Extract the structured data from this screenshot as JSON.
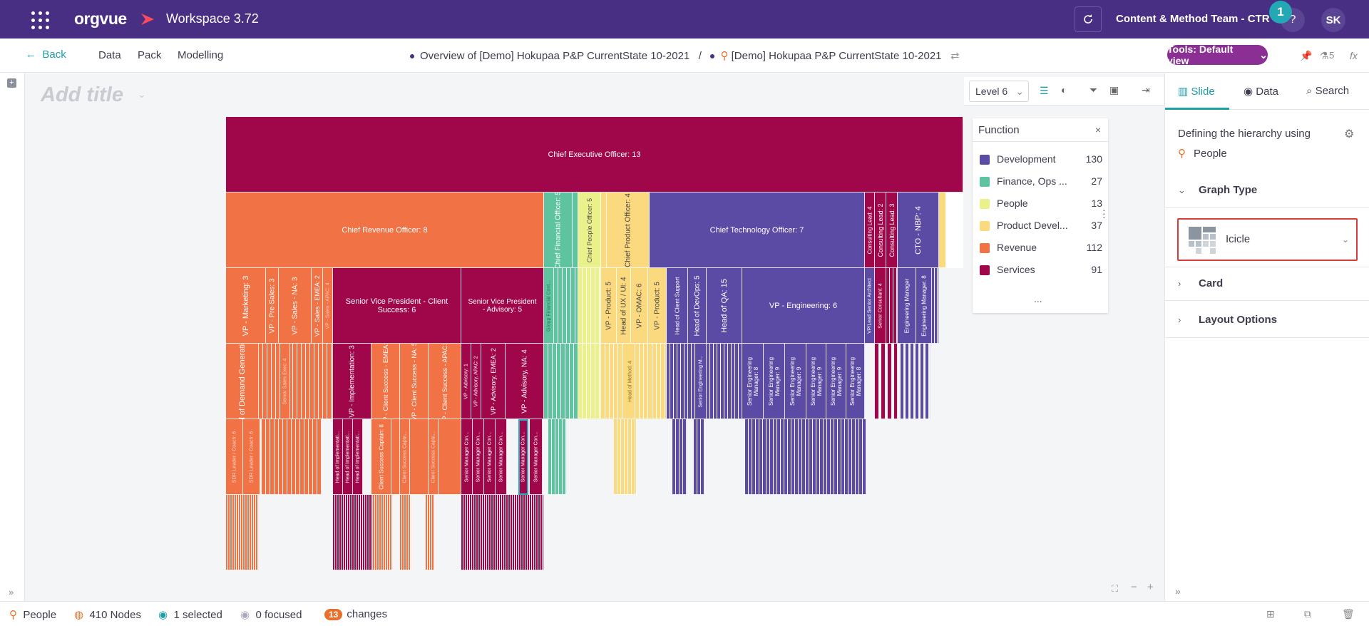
{
  "topbar": {
    "brand": "orgvue",
    "workspace": "Workspace 3.72",
    "team": "Content & Method Team - CTR",
    "help": "?",
    "notif_count": "1",
    "avatar": "SK"
  },
  "nav": {
    "back": "Back",
    "links": [
      "Data",
      "Pack",
      "Modelling"
    ],
    "crumb_left": "Overview of [Demo] Hokupaa P&P CurrentState 10-2021",
    "crumb_sep": "/",
    "crumb_right": "[Demo] Hokupaa P&P CurrentState 10-2021",
    "tools": "Tools: Default view",
    "version_count": "5",
    "fx": "fx"
  },
  "canvas": {
    "title_placeholder": "Add title",
    "level": "Level 6"
  },
  "legend": {
    "title": "Function",
    "close": "×",
    "more": "...",
    "items": [
      {
        "label": "Development",
        "count": "130",
        "color": "#5b4ba5"
      },
      {
        "label": "Finance, Ops ...",
        "count": "27",
        "color": "#5ec4a0"
      },
      {
        "label": "People",
        "count": "13",
        "color": "#eaf08a"
      },
      {
        "label": "Product Devel...",
        "count": "37",
        "color": "#fbd97e"
      },
      {
        "label": "Revenue",
        "count": "112",
        "color": "#f07245"
      },
      {
        "label": "Services",
        "count": "91",
        "color": "#a0064a"
      }
    ]
  },
  "org": {
    "ceo": "Chief Executive Officer: 13",
    "cro": "Chief Revenue Officer: 8",
    "cfo": "Chief Financial Officer: 5",
    "cpo": "Chief People Officer: 5",
    "cprod": "Chief Product Officer: 4",
    "cto": "Chief Technology Officer: 7",
    "consulting1": "Consulting Lead: 4",
    "consulting2": "Consulting Lead: 2",
    "consulting3": "Consulting Lead: 3",
    "cto_nbp": "CTO - NBP: 4",
    "vp_marketing": "VP - Marketing: 3",
    "vp_presales": "VP - Pre-Sales: 3",
    "vp_sales_na": "VP - Sales - NA: 3",
    "vp_sales_emea": "VP - Sales - EMEA: 2",
    "vp_sales_apac": "VP - Sales - APAC: 4",
    "svp_cs": "Senior Vice President - Client Success: 6",
    "svp_adv": "Senior Vice President - Advisory: 5",
    "group_fin": "Group Financial Cont...",
    "vp_product1": "VP - Product: 5",
    "head_ux": "Head of UX / UI: 4",
    "vp_omac": "VP - OMAC: 6",
    "vp_product2": "VP - Product: 5",
    "head_client_support": "Head of Client Support",
    "head_devops": "Head of DevOps: 5",
    "head_qa": "Head of QA: 15",
    "vp_eng": "VP - Engineering: 6",
    "vp_senior_arch": "VP/Lead Senior Architect",
    "senior_consultant": "Senior Consultant: 4",
    "eng_manager1": "Engineering Manager",
    "eng_manager2": "Engineering Manager: 8",
    "head_demand": "Head of Demand Generation: 3",
    "sales_exec": "Senior Sales Exec: 4",
    "vp_impl": "VP - Implementation: 3",
    "vp_cs_emea": "VP - Client Success - EMEA: 5",
    "vp_cs_na": "VP - Client Success - NA: 5",
    "vp_cs_apac": "VP - Client Success - APAC: 8",
    "vp_adv1": "VP - Advisory: 1",
    "vp_adv_apac": "VP - Advisory, APAC: 2",
    "vp_adv_emea": "VP - Advisory, EMEA: 2",
    "vp_adv_na": "VP - Advisory, NA: 4",
    "head_method": "Head of Method: 4",
    "head_eng": "Senior Engineering M...",
    "sem8": "Senior Engineering Manager: 8",
    "sem9": "Senior Engineering Manager: 9",
    "sdr": "SDR Leader / Coach: 6",
    "head_impl": "Head of Implementati...",
    "cs_captain": "Client Success Captain: 8",
    "cs_capt_short": "Client Success Capta...",
    "smc": "Senior Manager Con..."
  },
  "rpanel": {
    "tabs": [
      "Slide",
      "Data",
      "Search"
    ],
    "hier_text": "Defining the hierarchy using",
    "hier_people": "People",
    "graph_type": "Graph Type",
    "graph_value": "Icicle",
    "card": "Card",
    "layout": "Layout Options"
  },
  "bottombar": {
    "people": "People",
    "nodes": "410 Nodes",
    "selected": "1 selected",
    "focused": "0 focused",
    "changes_count": "13",
    "changes": "changes"
  }
}
